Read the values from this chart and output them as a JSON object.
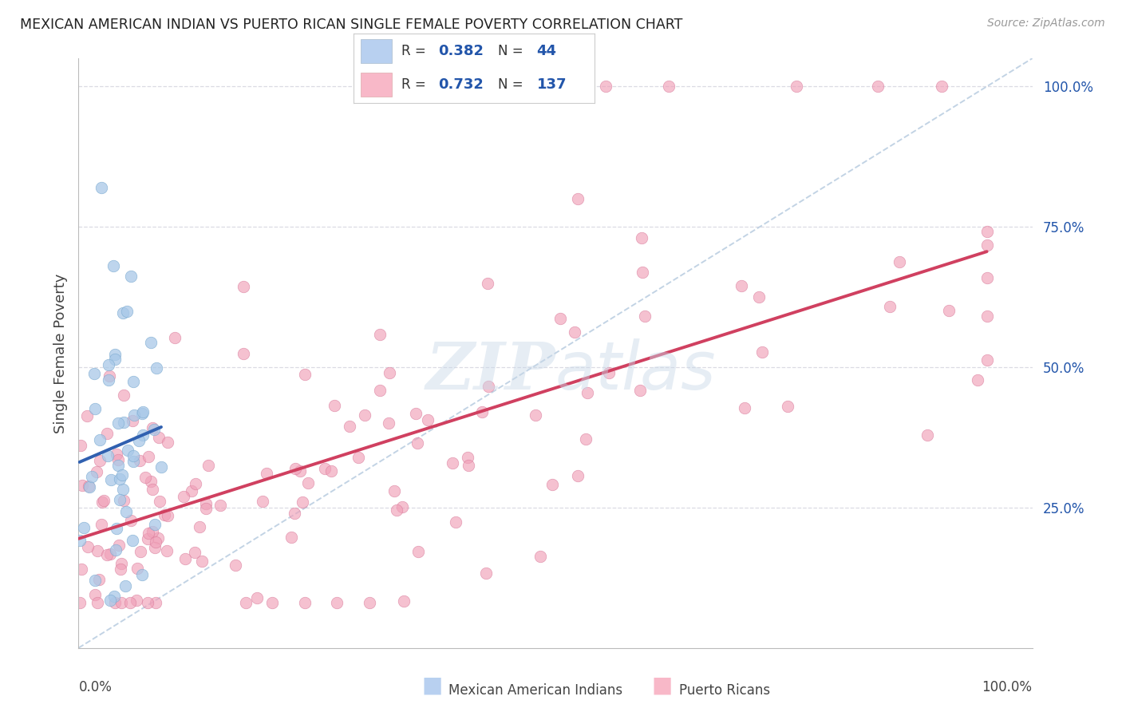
{
  "title": "MEXICAN AMERICAN INDIAN VS PUERTO RICAN SINGLE FEMALE POVERTY CORRELATION CHART",
  "source": "Source: ZipAtlas.com",
  "ylabel": "Single Female Poverty",
  "R_blue": 0.382,
  "N_blue": 44,
  "R_pink": 0.732,
  "N_pink": 137,
  "blue_scatter_color": "#a8c8e8",
  "blue_scatter_edge": "#7aaad0",
  "pink_scatter_color": "#f0a0b8",
  "pink_scatter_edge": "#d87898",
  "blue_line_color": "#3060b0",
  "pink_line_color": "#d04060",
  "diagonal_color": "#b8cce0",
  "grid_color": "#d8d8e0",
  "background_color": "#ffffff",
  "legend_box_blue": "#b8d0f0",
  "legend_box_pink": "#f8b8c8",
  "accent_color": "#2255aa",
  "watermark_color": "#c8d8e8",
  "ylim_min": 0.0,
  "ylim_max": 1.05,
  "xlim_min": 0.0,
  "xlim_max": 1.05
}
